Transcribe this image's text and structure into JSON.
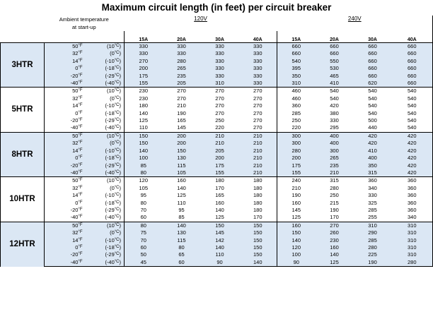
{
  "title": "Maximum circuit length (in feet) per circuit breaker",
  "header": {
    "ambient_line1": "Ambient temperature",
    "ambient_line2": "at start-up",
    "voltages": [
      "120V",
      "240V"
    ],
    "amps": [
      "15A",
      "20A",
      "30A",
      "40A"
    ]
  },
  "temperatures": [
    {
      "f": "50",
      "c": "10"
    },
    {
      "f": "32",
      "c": "0"
    },
    {
      "f": "14",
      "c": "-10"
    },
    {
      "f": "0",
      "c": "-18"
    },
    {
      "f": "-20",
      "c": "-29"
    },
    {
      "f": "-40",
      "c": "-40"
    }
  ],
  "units": {
    "f": "°F",
    "c": "°C"
  },
  "colors": {
    "band": "#dbe7f4",
    "white": "#ffffff"
  },
  "heaters": [
    {
      "name": "3HTR",
      "shade": "blue",
      "rows": [
        [
          "330",
          "330",
          "330",
          "330",
          "660",
          "660",
          "660",
          "660"
        ],
        [
          "330",
          "330",
          "330",
          "330",
          "660",
          "660",
          "660",
          "660"
        ],
        [
          "270",
          "280",
          "330",
          "330",
          "540",
          "550",
          "660",
          "660"
        ],
        [
          "200",
          "265",
          "330",
          "330",
          "395",
          "530",
          "660",
          "660"
        ],
        [
          "175",
          "235",
          "330",
          "330",
          "350",
          "465",
          "660",
          "660"
        ],
        [
          "155",
          "205",
          "310",
          "330",
          "310",
          "410",
          "620",
          "660"
        ]
      ]
    },
    {
      "name": "5HTR",
      "shade": "white",
      "rows": [
        [
          "230",
          "270",
          "270",
          "270",
          "460",
          "540",
          "540",
          "540"
        ],
        [
          "230",
          "270",
          "270",
          "270",
          "460",
          "540",
          "540",
          "540"
        ],
        [
          "180",
          "210",
          "270",
          "270",
          "360",
          "420",
          "540",
          "540"
        ],
        [
          "140",
          "190",
          "270",
          "270",
          "285",
          "380",
          "540",
          "540"
        ],
        [
          "125",
          "165",
          "250",
          "270",
          "250",
          "330",
          "500",
          "540"
        ],
        [
          "110",
          "145",
          "220",
          "270",
          "220",
          "295",
          "440",
          "540"
        ]
      ]
    },
    {
      "name": "8HTR",
      "shade": "blue",
      "rows": [
        [
          "150",
          "200",
          "210",
          "210",
          "300",
          "400",
          "420",
          "420"
        ],
        [
          "150",
          "200",
          "210",
          "210",
          "300",
          "400",
          "420",
          "420"
        ],
        [
          "140",
          "150",
          "205",
          "210",
          "280",
          "300",
          "410",
          "420"
        ],
        [
          "100",
          "130",
          "200",
          "210",
          "200",
          "265",
          "400",
          "420"
        ],
        [
          "85",
          "115",
          "175",
          "210",
          "175",
          "235",
          "350",
          "420"
        ],
        [
          "80",
          "105",
          "155",
          "210",
          "155",
          "210",
          "315",
          "420"
        ]
      ]
    },
    {
      "name": "10HTR",
      "shade": "white",
      "rows": [
        [
          "120",
          "160",
          "180",
          "180",
          "240",
          "315",
          "360",
          "360"
        ],
        [
          "105",
          "140",
          "170",
          "180",
          "210",
          "280",
          "340",
          "360"
        ],
        [
          "95",
          "125",
          "165",
          "180",
          "190",
          "250",
          "330",
          "360"
        ],
        [
          "80",
          "110",
          "160",
          "180",
          "160",
          "215",
          "325",
          "360"
        ],
        [
          "70",
          "95",
          "140",
          "180",
          "145",
          "190",
          "285",
          "360"
        ],
        [
          "60",
          "85",
          "125",
          "170",
          "125",
          "170",
          "255",
          "340"
        ]
      ]
    },
    {
      "name": "12HTR",
      "shade": "blue",
      "rows": [
        [
          "80",
          "140",
          "150",
          "150",
          "160",
          "270",
          "310",
          "310"
        ],
        [
          "75",
          "130",
          "145",
          "150",
          "150",
          "260",
          "290",
          "310"
        ],
        [
          "70",
          "115",
          "142",
          "150",
          "140",
          "230",
          "285",
          "310"
        ],
        [
          "60",
          "80",
          "140",
          "150",
          "120",
          "160",
          "280",
          "310"
        ],
        [
          "50",
          "65",
          "110",
          "150",
          "100",
          "140",
          "225",
          "310"
        ],
        [
          "45",
          "60",
          "90",
          "140",
          "90",
          "125",
          "190",
          "280"
        ]
      ]
    }
  ]
}
